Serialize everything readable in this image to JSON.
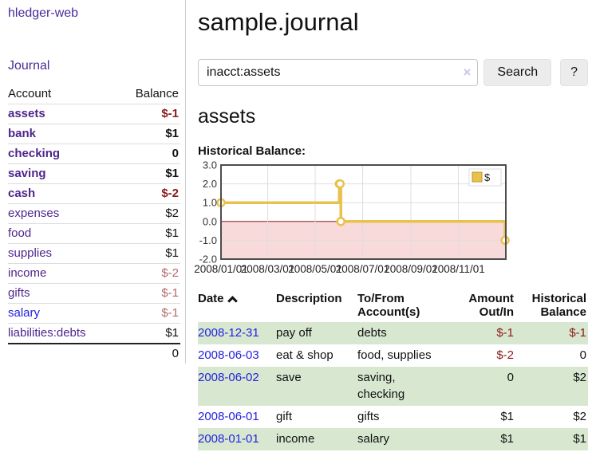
{
  "app": {
    "brand": "hledger-web",
    "nav_journal": "Journal"
  },
  "sidebar": {
    "accounts_header": {
      "account": "Account",
      "balance": "Balance"
    },
    "accounts": [
      {
        "name": "assets",
        "indent": 0,
        "bold": true,
        "name_style": "purple",
        "balance": "$-1",
        "balance_style": "neg-strong"
      },
      {
        "name": "bank",
        "indent": 1,
        "bold": true,
        "name_style": "purple",
        "balance": "$1",
        "balance_style": "pos"
      },
      {
        "name": "checking",
        "indent": 2,
        "bold": true,
        "name_style": "purple",
        "balance": "0",
        "balance_style": "pos"
      },
      {
        "name": "saving",
        "indent": 2,
        "bold": true,
        "name_style": "purple",
        "balance": "$1",
        "balance_style": "pos"
      },
      {
        "name": "cash",
        "indent": 1,
        "bold": true,
        "name_style": "purple",
        "balance": "$-2",
        "balance_style": "neg-strong"
      },
      {
        "name": "expenses",
        "indent": 0,
        "bold": false,
        "name_style": "purple",
        "balance": "$2",
        "balance_style": "pos"
      },
      {
        "name": "food",
        "indent": 1,
        "bold": false,
        "name_style": "purple",
        "balance": "$1",
        "balance_style": "pos"
      },
      {
        "name": "supplies",
        "indent": 1,
        "bold": false,
        "name_style": "purple",
        "balance": "$1",
        "balance_style": "pos"
      },
      {
        "name": "income",
        "indent": 0,
        "bold": false,
        "name_style": "purple",
        "balance": "$-2",
        "balance_style": "neg-soft"
      },
      {
        "name": "gifts",
        "indent": 1,
        "bold": false,
        "name_style": "purple",
        "balance": "$-1",
        "balance_style": "neg-soft"
      },
      {
        "name": "salary",
        "indent": 1,
        "bold": false,
        "name_style": "blue",
        "balance": "$-1",
        "balance_style": "neg-soft"
      },
      {
        "name": "liabilities:debts",
        "indent": 0,
        "bold": false,
        "name_style": "purple",
        "balance": "$1",
        "balance_style": "pos"
      }
    ],
    "total": "0"
  },
  "header": {
    "title": "sample.journal"
  },
  "search": {
    "value": "inacct:assets",
    "clear_label": "×",
    "button": "Search",
    "help": "?"
  },
  "account_page": {
    "title": "assets",
    "chart_label": "Historical Balance:"
  },
  "chart_data": {
    "type": "line",
    "step": "after",
    "title": "Historical Balance:",
    "series": [
      {
        "name": "$",
        "color": "#e9c24d",
        "points": [
          [
            "2008-01-01",
            1
          ],
          [
            "2008-06-01",
            2
          ],
          [
            "2008-06-02",
            2
          ],
          [
            "2008-06-03",
            0
          ],
          [
            "2008-12-31",
            -1
          ]
        ]
      }
    ],
    "x_domain": [
      "2008-01-01",
      "2009-01-01"
    ],
    "x_ticks": [
      "2008/01/01",
      "2008/03/01",
      "2008/05/01",
      "2008/07/01",
      "2008/09/01",
      "2008/11/01"
    ],
    "y_ticks": [
      "3.0",
      "2.0",
      "1.0",
      "0.0",
      "-1.0",
      "-2.0"
    ],
    "ylim": [
      -2,
      3
    ],
    "grid": true,
    "legend": {
      "label": "$",
      "position": "top-right"
    },
    "colors": {
      "line": "#e9c24d",
      "marker_fill": "#ffffff",
      "negative_fill": "#f9dada",
      "zero_line": "#8b1a1a",
      "gridline": "#dedede",
      "border": "#4d4d4d",
      "legend_square": "#e8c24a",
      "legend_square_border": "#bd9630"
    }
  },
  "register": {
    "columns": [
      "Date",
      "Description",
      "To/From Account(s)",
      "Amount Out/In",
      "Historical Balance"
    ],
    "rows": [
      {
        "date": "2008-12-31",
        "description": "pay off",
        "accounts": "debts",
        "amount": "$-1",
        "amount_neg": true,
        "balance": "$-1",
        "balance_neg": true
      },
      {
        "date": "2008-06-03",
        "description": "eat & shop",
        "accounts": "food, supplies",
        "amount": "$-2",
        "amount_neg": true,
        "balance": "0",
        "balance_neg": false
      },
      {
        "date": "2008-06-02",
        "description": "save",
        "accounts": "saving, checking",
        "amount": "0",
        "amount_neg": false,
        "balance": "$2",
        "balance_neg": false
      },
      {
        "date": "2008-06-01",
        "description": "gift",
        "accounts": "gifts",
        "amount": "$1",
        "amount_neg": false,
        "balance": "$2",
        "balance_neg": false
      },
      {
        "date": "2008-01-01",
        "description": "income",
        "accounts": "salary",
        "amount": "$1",
        "amount_neg": false,
        "balance": "$1",
        "balance_neg": false
      }
    ]
  }
}
